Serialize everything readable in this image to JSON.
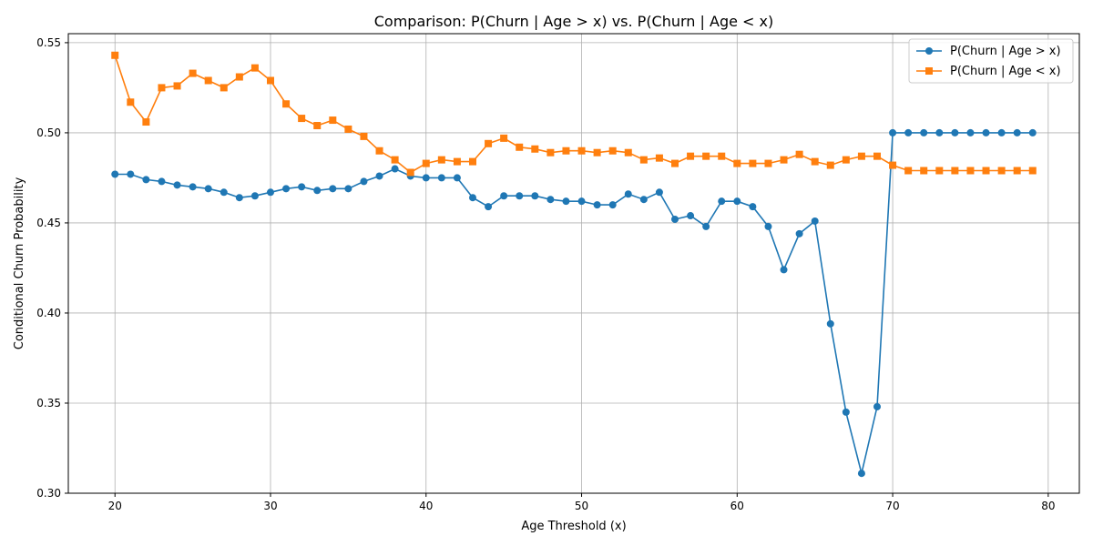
{
  "chart_data": {
    "type": "line",
    "title": "Comparison: P(Churn | Age > x) vs. P(Churn | Age < x)",
    "xlabel": "Age Threshold (x)",
    "ylabel": "Conditional Churn Probability",
    "xlim": [
      17,
      82
    ],
    "ylim": [
      0.3,
      0.555
    ],
    "xticks": [
      20,
      30,
      40,
      50,
      60,
      70,
      80
    ],
    "yticks": [
      0.3,
      0.35,
      0.4,
      0.45,
      0.5,
      0.55
    ],
    "ytick_labels": [
      "0.30",
      "0.35",
      "0.40",
      "0.45",
      "0.50",
      "0.55"
    ],
    "grid": true,
    "legend_position": "top-right",
    "x": [
      20,
      21,
      22,
      23,
      24,
      25,
      26,
      27,
      28,
      29,
      30,
      31,
      32,
      33,
      34,
      35,
      36,
      37,
      38,
      39,
      40,
      41,
      42,
      43,
      44,
      45,
      46,
      47,
      48,
      49,
      50,
      51,
      52,
      53,
      54,
      55,
      56,
      57,
      58,
      59,
      60,
      61,
      62,
      63,
      64,
      65,
      66,
      67,
      68,
      69,
      70,
      71,
      72,
      73,
      74,
      75,
      76,
      77,
      78,
      79
    ],
    "series": [
      {
        "name": "P(Churn | Age > x)",
        "color": "#1f77b4",
        "marker": "circle",
        "values": [
          0.477,
          0.477,
          0.474,
          0.473,
          0.471,
          0.47,
          0.469,
          0.467,
          0.464,
          0.465,
          0.467,
          0.469,
          0.47,
          0.468,
          0.469,
          0.469,
          0.473,
          0.476,
          0.48,
          0.476,
          0.475,
          0.475,
          0.475,
          0.464,
          0.459,
          0.465,
          0.465,
          0.465,
          0.463,
          0.462,
          0.462,
          0.46,
          0.46,
          0.466,
          0.463,
          0.467,
          0.452,
          0.454,
          0.448,
          0.462,
          0.462,
          0.459,
          0.448,
          0.424,
          0.444,
          0.451,
          0.394,
          0.345,
          0.311,
          0.348,
          0.5,
          0.5,
          0.5,
          0.5,
          0.5,
          0.5,
          0.5,
          0.5,
          0.5,
          0.5
        ]
      },
      {
        "name": "P(Churn | Age < x)",
        "color": "#ff7f0e",
        "marker": "square",
        "values": [
          0.543,
          0.517,
          0.506,
          0.525,
          0.526,
          0.533,
          0.529,
          0.525,
          0.531,
          0.536,
          0.529,
          0.516,
          0.508,
          0.504,
          0.507,
          0.502,
          0.498,
          0.49,
          0.485,
          0.478,
          0.483,
          0.485,
          0.484,
          0.484,
          0.494,
          0.497,
          0.492,
          0.491,
          0.489,
          0.49,
          0.49,
          0.489,
          0.49,
          0.489,
          0.485,
          0.486,
          0.483,
          0.487,
          0.487,
          0.487,
          0.483,
          0.483,
          0.483,
          0.485,
          0.488,
          0.484,
          0.482,
          0.485,
          0.487,
          0.487,
          0.482,
          0.479,
          0.479,
          0.479,
          0.479,
          0.479,
          0.479,
          0.479,
          0.479,
          0.479
        ]
      }
    ]
  }
}
